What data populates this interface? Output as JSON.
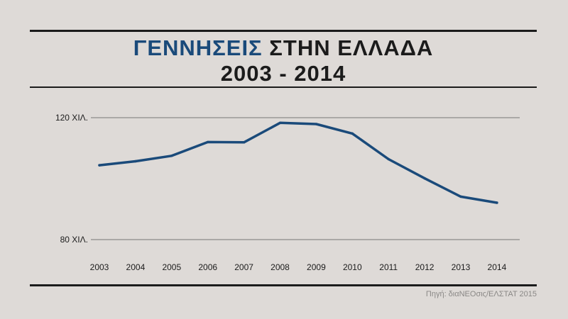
{
  "title_highlight": "ΓΕΝΝΗΣΕΙΣ",
  "title_rest": "ΣΤΗΝ ΕΛΛΑΔΑ",
  "subtitle": "2003 - 2014",
  "source": "Πηγή: διαΝΕΟσις/ΕΛΣΤΑΤ 2015",
  "colors": {
    "line": "#1a4a7a",
    "highlight": "#1a4a7a",
    "text": "#1b1b1b",
    "grid": "#555555"
  },
  "chart_data": {
    "type": "line",
    "title": "ΓΕΝΝΗΣΕΙΣ ΣΤΗΝ ΕΛΛΑΔΑ 2003 - 2014",
    "xlabel": "",
    "ylabel": "",
    "categories": [
      "2003",
      "2004",
      "2005",
      "2006",
      "2007",
      "2008",
      "2009",
      "2010",
      "2011",
      "2012",
      "2013",
      "2014"
    ],
    "series": [
      {
        "values": [
          104.4,
          105.7,
          107.5,
          112.0,
          111.9,
          118.3,
          117.9,
          114.8,
          106.4,
          100.1,
          94.1,
          92.1
        ]
      }
    ],
    "ylim": [
      80,
      120
    ],
    "yticks": [
      {
        "value": 120,
        "label": "120 ΧΙΛ."
      },
      {
        "value": 80,
        "label": "80 ΧΙΛ."
      }
    ],
    "grid": true
  }
}
